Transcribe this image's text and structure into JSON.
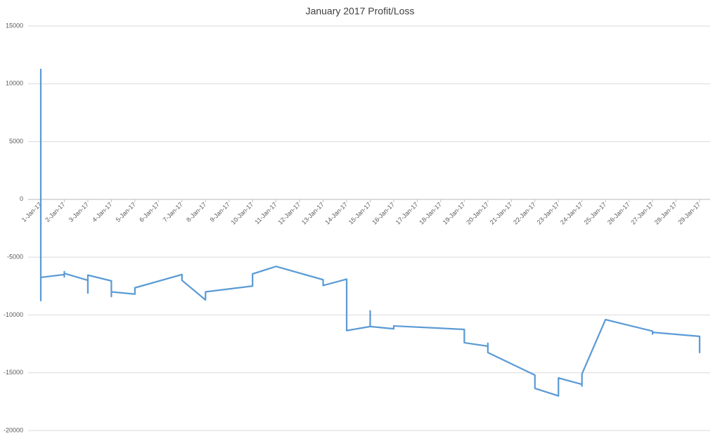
{
  "chart_data": {
    "type": "line",
    "title": "January 2017 Profit/Loss",
    "xticks": [
      "1-Jan-17",
      "2-Jan-17",
      "3-Jan-17",
      "4-Jan-17",
      "5-Jan-17",
      "6-Jan-17",
      "7-Jan-17",
      "8-Jan-17",
      "9-Jan-17",
      "10-Jan-17",
      "11-Jan-17",
      "12-Jan-17",
      "13-Jan-17",
      "14-Jan-17",
      "15-Jan-17",
      "16-Jan-17",
      "17-Jan-17",
      "18-Jan-17",
      "19-Jan-17",
      "20-Jan-17",
      "21-Jan-17",
      "22-Jan-17",
      "23-Jan-17",
      "24-Jan-17",
      "25-Jan-17",
      "26-Jan-17",
      "27-Jan-17",
      "28-Jan-17",
      "29-Jan-17"
    ],
    "x": [
      "1-Jan-17",
      "1-Jan-17",
      "1-Jan-17",
      "2-Jan-17",
      "2-Jan-17",
      "2-Jan-17",
      "2-Jan-17",
      "3-Jan-17",
      "3-Jan-17",
      "3-Jan-17",
      "4-Jan-17",
      "4-Jan-17",
      "4-Jan-17",
      "5-Jan-17",
      "5-Jan-17",
      "7-Jan-17",
      "7-Jan-17",
      "8-Jan-17",
      "8-Jan-17",
      "10-Jan-17",
      "10-Jan-17",
      "11-Jan-17",
      "13-Jan-17",
      "13-Jan-17",
      "14-Jan-17",
      "14-Jan-17",
      "15-Jan-17",
      "15-Jan-17",
      "15-Jan-17",
      "16-Jan-17",
      "16-Jan-17",
      "19-Jan-17",
      "19-Jan-17",
      "20-Jan-17",
      "20-Jan-17",
      "20-Jan-17",
      "22-Jan-17",
      "22-Jan-17",
      "23-Jan-17",
      "23-Jan-17",
      "24-Jan-17",
      "24-Jan-17",
      "24-Jan-17",
      "25-Jan-17",
      "27-Jan-17",
      "27-Jan-17",
      "27-Jan-17",
      "29-Jan-17",
      "29-Jan-17"
    ],
    "series": [
      {
        "color": "#5b9bd5",
        "values": [
          11300,
          -8750,
          -6750,
          -6500,
          -6250,
          -6700,
          -6400,
          -7000,
          -8100,
          -6550,
          -7050,
          -8400,
          -8000,
          -8200,
          -7650,
          -6500,
          -7000,
          -8700,
          -8000,
          -7500,
          -6450,
          -5800,
          -6950,
          -7450,
          -6900,
          -11350,
          -11000,
          -9650,
          -11000,
          -11200,
          -10950,
          -11250,
          -12400,
          -12700,
          -12450,
          -13250,
          -15200,
          -16350,
          -17000,
          -15450,
          -16000,
          -16150,
          -15100,
          -10400,
          -11400,
          -11650,
          -11500,
          -11850,
          -13300
        ]
      }
    ],
    "ylim": [
      -20000,
      15000
    ],
    "yticks": [
      -20000,
      -15000,
      -10000,
      -5000,
      0,
      5000,
      10000,
      15000
    ],
    "grid": true
  }
}
